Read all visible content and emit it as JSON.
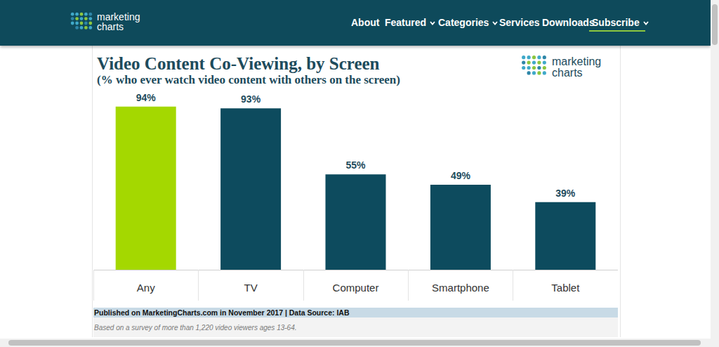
{
  "chart_data": {
    "type": "bar",
    "title": "Video Content Co-Viewing, by Screen",
    "subtitle": "(% who ever watch video content with others on the screen)",
    "categories": [
      "Any",
      "TV",
      "Computer",
      "Smartphone",
      "Tablet"
    ],
    "values": [
      94,
      93,
      55,
      49,
      39
    ],
    "value_labels": [
      "94%",
      "93%",
      "55%",
      "49%",
      "39%"
    ],
    "colors": [
      "#a4d800",
      "#0d4b5e",
      "#0d4b5e",
      "#0d4b5e",
      "#0d4b5e"
    ],
    "ylim": [
      0,
      100
    ],
    "grid": false,
    "data_labels": true,
    "tick_labels": "x"
  },
  "page": {
    "site_logo": [
      "marketing",
      "charts"
    ],
    "nav": [
      {
        "label": "About",
        "dropdown": false
      },
      {
        "label": "Featured",
        "dropdown": true
      },
      {
        "label": "Categories",
        "dropdown": true
      },
      {
        "label": "Services",
        "dropdown": false
      },
      {
        "label": "Downloads",
        "dropdown": false
      },
      {
        "label": "Subscribe",
        "dropdown": true
      }
    ],
    "active": "Subscribe",
    "chart_logo": [
      "marketing",
      "charts"
    ],
    "source_line": "Published on MarketingCharts.com in November 2017 | Data Source: IAB",
    "footnote": "Based on a survey of more than 1,220 video viewers ages 13-64."
  }
}
